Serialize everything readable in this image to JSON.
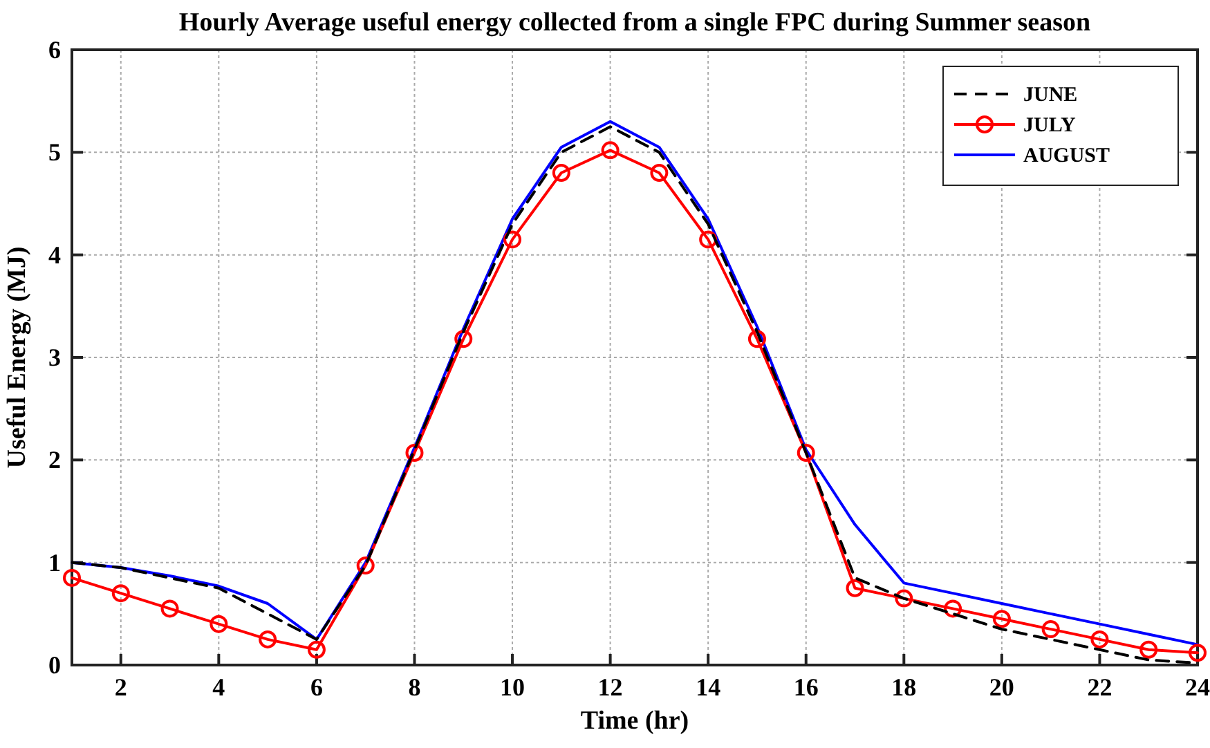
{
  "chart_data": {
    "type": "line",
    "title": "Hourly Average useful energy collected from a single FPC during Summer season",
    "xlabel": "Time (hr)",
    "ylabel": "Useful Energy (MJ)",
    "x": [
      1,
      2,
      3,
      4,
      5,
      6,
      7,
      8,
      9,
      10,
      11,
      12,
      13,
      14,
      15,
      16,
      17,
      18,
      19,
      20,
      21,
      22,
      23,
      24
    ],
    "xlim": [
      1,
      24
    ],
    "xticks": [
      2,
      4,
      6,
      8,
      10,
      12,
      14,
      16,
      18,
      20,
      22,
      24
    ],
    "ylim": [
      0,
      6
    ],
    "yticks": [
      0,
      1,
      2,
      3,
      4,
      5,
      6
    ],
    "grid": true,
    "legend": "top right",
    "series": [
      {
        "name": "JUNE",
        "color": "#000000",
        "line_style": "dashed",
        "marker": "none",
        "values": [
          1.0,
          0.95,
          0.85,
          0.75,
          0.5,
          0.25,
          0.97,
          2.1,
          3.25,
          4.3,
          5.0,
          5.25,
          5.0,
          4.3,
          3.25,
          2.07,
          0.85,
          0.65,
          0.5,
          0.35,
          0.25,
          0.15,
          0.05,
          0.02
        ]
      },
      {
        "name": "JULY",
        "color": "#ff0000",
        "line_style": "solid",
        "marker": "circle",
        "values": [
          0.85,
          0.7,
          0.55,
          0.4,
          0.25,
          0.15,
          0.97,
          2.07,
          3.18,
          4.15,
          4.8,
          5.02,
          4.8,
          4.15,
          3.18,
          2.07,
          0.75,
          0.65,
          0.55,
          0.45,
          0.35,
          0.25,
          0.15,
          0.12
        ]
      },
      {
        "name": "AUGUST",
        "color": "#0000ff",
        "line_style": "solid",
        "marker": "none",
        "values": [
          1.0,
          0.95,
          0.87,
          0.77,
          0.6,
          0.25,
          1.0,
          2.12,
          3.28,
          4.35,
          5.05,
          5.3,
          5.05,
          4.35,
          3.3,
          2.1,
          1.37,
          0.8,
          0.7,
          0.6,
          0.5,
          0.4,
          0.3,
          0.2
        ]
      }
    ]
  }
}
